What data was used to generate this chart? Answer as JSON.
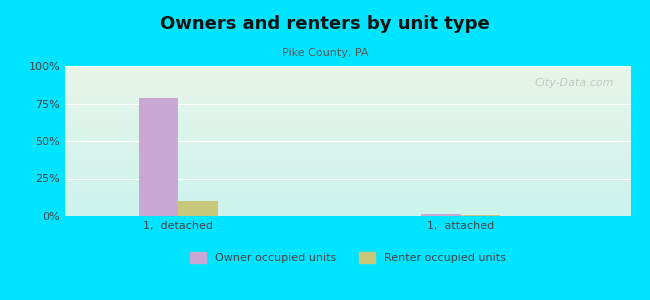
{
  "title": "Owners and renters by unit type",
  "subtitle": "Pike County, PA",
  "categories": [
    "1,  detached",
    "1,  attached"
  ],
  "owner_values": [
    79,
    1.5
  ],
  "renter_values": [
    10,
    1.0
  ],
  "owner_color": "#c9a8d4",
  "renter_color": "#c8c87a",
  "ylim": [
    0,
    100
  ],
  "yticks": [
    0,
    25,
    50,
    75,
    100
  ],
  "ytick_labels": [
    "0%",
    "25%",
    "50%",
    "75%",
    "100%"
  ],
  "background_cyan": "#00e5ff",
  "plot_bg_top": "#e8f5e9",
  "plot_bg_bottom": "#e0f7f4",
  "bar_width": 0.35,
  "group_positions": [
    1.0,
    3.5
  ],
  "legend_owner": "Owner occupied units",
  "legend_renter": "Renter occupied units",
  "watermark": "City-Data.com"
}
